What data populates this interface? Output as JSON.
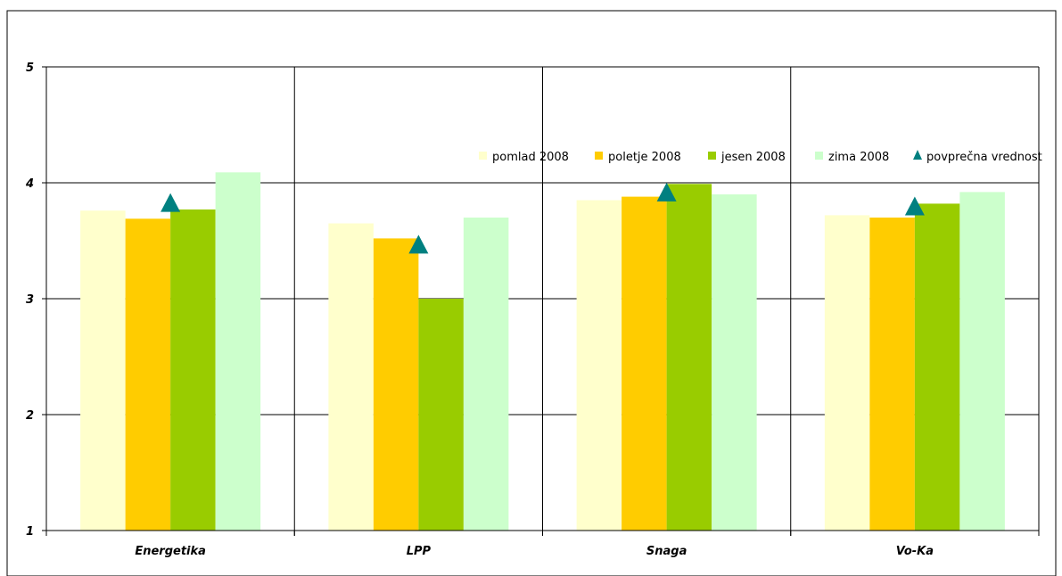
{
  "chart_data": {
    "type": "bar",
    "title": "",
    "xlabel": "",
    "ylabel": "",
    "ylim": [
      1,
      5
    ],
    "yticks": [
      "1",
      "2",
      "3",
      "4",
      "5"
    ],
    "grid": true,
    "legend_position": "top-right",
    "categories": [
      "Energetika",
      "LPP",
      "Snaga",
      "Vo-Ka"
    ],
    "series": [
      {
        "name": "pomlad 2008",
        "color": "#FFFFCC",
        "values": [
          3.76,
          3.65,
          3.85,
          3.72
        ]
      },
      {
        "name": "poletje 2008",
        "color": "#FFCC00",
        "values": [
          3.69,
          3.52,
          3.88,
          3.7
        ]
      },
      {
        "name": "jesen 2008",
        "color": "#99CC00",
        "values": [
          3.77,
          3.0,
          3.99,
          3.82
        ]
      },
      {
        "name": "zima 2008",
        "color": "#CCFFCC",
        "values": [
          4.09,
          3.7,
          3.9,
          3.92
        ]
      }
    ],
    "average": {
      "name": "povprečna vrednost",
      "color": "#008080",
      "marker": "triangle",
      "values": [
        3.83,
        3.47,
        3.92,
        3.8
      ]
    }
  }
}
